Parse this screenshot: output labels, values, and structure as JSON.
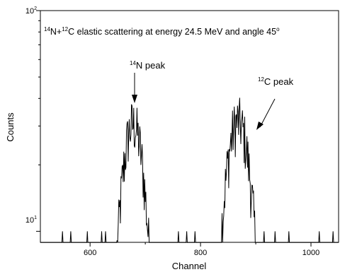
{
  "chart_data": {
    "type": "line",
    "title_parts": {
      "sup1": "14",
      "t1": "N+",
      "sup2": "12",
      "t2": "C elastic scattering at energy 24.5 MeV and angle 45",
      "sup3": "o"
    },
    "xlabel": "Channel",
    "ylabel": "Counts",
    "xlim": [
      510,
      1050
    ],
    "ylim_log10": [
      0.95,
      2
    ],
    "log_y": true,
    "x_ticks": [
      "600",
      "800",
      "1000"
    ],
    "x_tick_values": [
      600,
      800,
      1000
    ],
    "y_ticks": [
      {
        "base": "10",
        "exp": "1",
        "value": 10
      },
      {
        "base": "10",
        "exp": "2",
        "value": 100
      }
    ],
    "annotations": [
      {
        "sup": "14",
        "text": "N peak",
        "arrow_x_channel": 675
      },
      {
        "sup": "12",
        "text": "C peak",
        "arrow_x_channel": 880
      }
    ],
    "series": [
      {
        "peak_N": {
          "center": 678,
          "sigma": 18,
          "amp": 33
        },
        "peak_C": {
          "center": 868,
          "sigma": 20,
          "amp": 34
        },
        "noise_spikes": [
          550,
          565,
          595,
          621,
          628,
          760,
          775,
          790,
          915,
          935,
          960,
          1015,
          1040
        ],
        "spike_value": 10
      }
    ]
  }
}
